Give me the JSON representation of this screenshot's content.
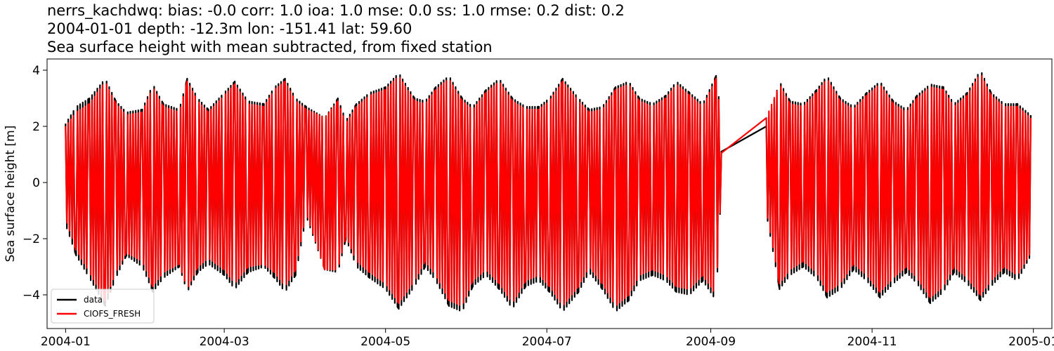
{
  "chart_data": {
    "type": "line",
    "title_lines": [
      "nerrs_kachdwq: bias: -0.0  corr: 1.0  ioa: 1.0  mse: 0.0  ss: 1.0  rmse: 0.2  dist: 0.2",
      "2004-01-01 depth: -12.3m lon: -151.41 lat: 59.60",
      "Sea surface height with mean subtracted, from fixed station"
    ],
    "xlabel": "",
    "ylabel": "Sea surface height [m]",
    "xlim": [
      "2003-12-25",
      "2005-01-08"
    ],
    "ylim": [
      -5.2,
      4.4
    ],
    "x_ticks": [
      "2004-01-01",
      "2004-03-01",
      "2004-05-01",
      "2004-07-01",
      "2004-09-01",
      "2004-11-01",
      "2005-01-01"
    ],
    "x_tick_labels": [
      "2004-01",
      "2004-03",
      "2004-05",
      "2004-07",
      "2004-09",
      "2004-11",
      "2005-01"
    ],
    "y_ticks": [
      -4,
      -2,
      0,
      2,
      4
    ],
    "y_tick_labels": [
      "−4",
      "−2",
      "0",
      "2",
      "4"
    ],
    "grid": false,
    "legend_position": "lower-left",
    "series": [
      {
        "name": "data",
        "color": "#000000",
        "envelope": {
          "x": [
            "2004-01-01",
            "2004-01-05",
            "2004-01-10",
            "2004-01-16",
            "2004-01-20",
            "2004-01-24",
            "2004-01-30",
            "2004-02-03",
            "2004-02-07",
            "2004-02-13",
            "2004-02-16",
            "2004-02-20",
            "2004-02-24",
            "2004-03-01",
            "2004-03-05",
            "2004-03-10",
            "2004-03-16",
            "2004-03-20",
            "2004-03-24",
            "2004-03-28",
            "2004-04-01",
            "2004-04-08",
            "2004-04-13",
            "2004-04-16",
            "2004-04-20",
            "2004-04-25",
            "2004-05-01",
            "2004-05-06",
            "2004-05-12",
            "2004-05-16",
            "2004-05-20",
            "2004-05-25",
            "2004-05-30",
            "2004-06-03",
            "2004-06-08",
            "2004-06-13",
            "2004-06-18",
            "2004-06-23",
            "2004-06-28",
            "2004-07-02",
            "2004-07-07",
            "2004-07-13",
            "2004-07-17",
            "2004-07-22",
            "2004-07-27",
            "2004-08-01",
            "2004-08-05",
            "2004-08-10",
            "2004-08-15",
            "2004-08-19",
            "2004-08-24",
            "2004-08-29",
            "2004-09-03",
            "2004-09-05",
            "2004-09-22",
            "2004-09-27",
            "2004-10-01",
            "2004-10-06",
            "2004-10-11",
            "2004-10-15",
            "2004-10-20",
            "2004-10-25",
            "2004-10-30",
            "2004-11-04",
            "2004-11-09",
            "2004-11-14",
            "2004-11-18",
            "2004-11-23",
            "2004-11-28",
            "2004-12-02",
            "2004-12-07",
            "2004-12-12",
            "2004-12-16",
            "2004-12-21",
            "2004-12-26",
            "2004-12-31"
          ],
          "max": [
            2.1,
            2.7,
            3.0,
            3.7,
            2.9,
            2.5,
            2.6,
            3.5,
            2.8,
            2.6,
            3.7,
            3.0,
            2.6,
            3.2,
            3.6,
            2.9,
            2.8,
            3.4,
            3.7,
            3.0,
            2.7,
            2.3,
            3.0,
            2.2,
            2.8,
            3.2,
            3.4,
            3.9,
            3.0,
            2.9,
            3.4,
            3.8,
            3.0,
            2.7,
            3.3,
            3.7,
            3.0,
            2.7,
            2.7,
            3.0,
            3.7,
            3.0,
            2.6,
            2.7,
            3.4,
            3.6,
            3.0,
            2.8,
            3.1,
            3.6,
            3.2,
            2.8,
            3.8,
            2.3,
            2.0,
            3.6,
            2.9,
            2.8,
            3.3,
            3.8,
            3.0,
            2.7,
            3.2,
            3.6,
            2.9,
            2.6,
            3.1,
            3.5,
            3.4,
            2.8,
            3.2,
            4.0,
            3.2,
            2.8,
            2.8,
            2.4
          ],
          "min": [
            -1.5,
            -2.6,
            -3.4,
            -4.4,
            -3.4,
            -2.6,
            -3.0,
            -3.9,
            -3.4,
            -3.0,
            -3.9,
            -3.2,
            -2.9,
            -3.3,
            -3.8,
            -3.2,
            -3.0,
            -3.4,
            -3.9,
            -3.3,
            -1.2,
            -3.1,
            -3.2,
            -2.0,
            -3.0,
            -3.4,
            -3.8,
            -4.5,
            -3.7,
            -3.0,
            -3.5,
            -4.4,
            -4.6,
            -3.7,
            -3.3,
            -3.8,
            -4.5,
            -3.7,
            -3.5,
            -3.9,
            -4.6,
            -3.9,
            -3.2,
            -3.8,
            -4.6,
            -4.2,
            -3.5,
            -3.3,
            -3.5,
            -3.9,
            -4.0,
            -3.5,
            -4.2,
            -0.1,
            -1.1,
            -3.8,
            -3.3,
            -3.0,
            -3.4,
            -4.1,
            -3.8,
            -3.1,
            -3.5,
            -4.1,
            -3.6,
            -3.2,
            -3.6,
            -4.3,
            -3.9,
            -3.2,
            -3.6,
            -4.2,
            -3.7,
            -3.2,
            -3.5,
            -2.6
          ]
        }
      },
      {
        "name": "CIOFS_FRESH",
        "color": "#ff0000",
        "envelope": {
          "x": [
            "2004-01-01",
            "2004-01-05",
            "2004-01-10",
            "2004-01-16",
            "2004-01-20",
            "2004-01-24",
            "2004-01-30",
            "2004-02-03",
            "2004-02-07",
            "2004-02-13",
            "2004-02-16",
            "2004-02-20",
            "2004-02-24",
            "2004-03-01",
            "2004-03-05",
            "2004-03-10",
            "2004-03-16",
            "2004-03-20",
            "2004-03-24",
            "2004-03-28",
            "2004-04-01",
            "2004-04-08",
            "2004-04-13",
            "2004-04-16",
            "2004-04-20",
            "2004-04-25",
            "2004-05-01",
            "2004-05-06",
            "2004-05-12",
            "2004-05-16",
            "2004-05-20",
            "2004-05-25",
            "2004-05-30",
            "2004-06-03",
            "2004-06-08",
            "2004-06-13",
            "2004-06-18",
            "2004-06-23",
            "2004-06-28",
            "2004-07-02",
            "2004-07-07",
            "2004-07-13",
            "2004-07-17",
            "2004-07-22",
            "2004-07-27",
            "2004-08-01",
            "2004-08-05",
            "2004-08-10",
            "2004-08-15",
            "2004-08-19",
            "2004-08-24",
            "2004-08-29",
            "2004-09-03",
            "2004-09-05",
            "2004-09-22",
            "2004-09-27",
            "2004-10-01",
            "2004-10-06",
            "2004-10-11",
            "2004-10-15",
            "2004-10-20",
            "2004-10-25",
            "2004-10-30",
            "2004-11-04",
            "2004-11-09",
            "2004-11-14",
            "2004-11-18",
            "2004-11-23",
            "2004-11-28",
            "2004-12-02",
            "2004-12-07",
            "2004-12-12",
            "2004-12-16",
            "2004-12-21",
            "2004-12-26",
            "2004-12-31"
          ],
          "max": [
            2.0,
            2.5,
            2.8,
            3.6,
            2.8,
            2.4,
            2.5,
            3.4,
            2.7,
            2.5,
            3.6,
            2.9,
            2.5,
            3.1,
            3.5,
            2.8,
            2.7,
            3.3,
            3.6,
            2.9,
            2.6,
            2.3,
            2.9,
            2.1,
            2.7,
            3.1,
            3.3,
            3.8,
            2.9,
            2.8,
            3.3,
            3.7,
            2.9,
            2.6,
            3.2,
            3.6,
            2.9,
            2.6,
            2.6,
            2.9,
            3.6,
            2.9,
            2.5,
            2.6,
            3.3,
            3.5,
            2.9,
            2.7,
            3.0,
            3.5,
            3.1,
            2.7,
            3.7,
            2.2,
            2.3,
            3.5,
            2.8,
            2.7,
            3.2,
            3.7,
            2.9,
            2.6,
            3.1,
            3.5,
            2.8,
            2.5,
            3.0,
            3.4,
            3.3,
            2.7,
            3.1,
            3.9,
            3.1,
            2.7,
            2.7,
            2.3
          ],
          "min": [
            -1.3,
            -2.4,
            -3.2,
            -4.2,
            -3.2,
            -2.5,
            -2.8,
            -3.7,
            -3.2,
            -2.9,
            -3.8,
            -3.0,
            -2.7,
            -3.1,
            -3.6,
            -3.0,
            -2.9,
            -3.2,
            -3.7,
            -3.1,
            -1.1,
            -3.1,
            -3.1,
            -1.9,
            -2.8,
            -3.2,
            -3.6,
            -4.3,
            -3.5,
            -2.8,
            -3.3,
            -4.2,
            -4.4,
            -3.5,
            -3.1,
            -3.6,
            -4.3,
            -3.5,
            -3.3,
            -3.7,
            -4.4,
            -3.7,
            -3.0,
            -3.6,
            -4.4,
            -4.0,
            -3.3,
            -3.1,
            -3.3,
            -3.7,
            -3.8,
            -3.3,
            -4.0,
            -0.1,
            -1.0,
            -3.6,
            -3.1,
            -2.8,
            -3.2,
            -3.9,
            -3.6,
            -2.9,
            -3.3,
            -3.9,
            -3.4,
            -3.0,
            -3.4,
            -4.1,
            -3.7,
            -3.0,
            -3.4,
            -4.0,
            -3.5,
            -3.0,
            -3.3,
            -2.5
          ]
        }
      }
    ]
  }
}
